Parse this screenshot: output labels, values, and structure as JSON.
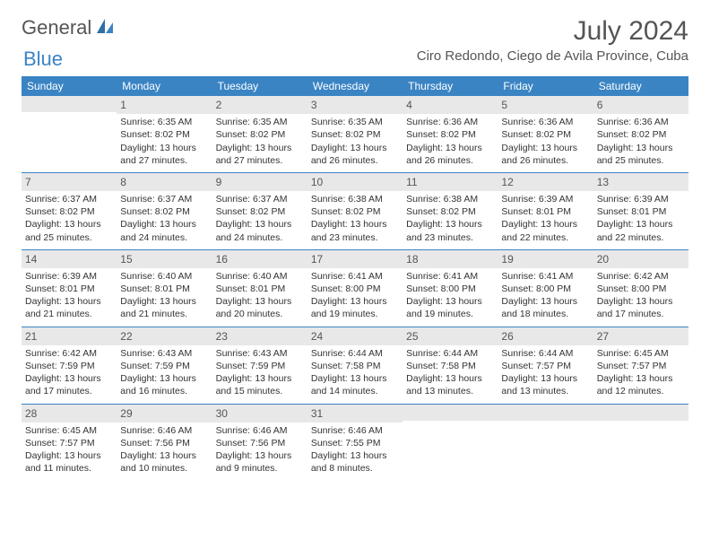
{
  "logo": {
    "text1": "General",
    "text2": "Blue"
  },
  "title": "July 2024",
  "location": "Ciro Redondo, Ciego de Avila Province, Cuba",
  "day_header_bg": "#3a84c4",
  "day_header_color": "#ffffff",
  "daynum_bg": "#e8e8e8",
  "border_color": "#3a84c4",
  "text_color": "#333333",
  "days": [
    "Sunday",
    "Monday",
    "Tuesday",
    "Wednesday",
    "Thursday",
    "Friday",
    "Saturday"
  ],
  "weeks": [
    [
      {
        "n": "",
        "sr": "",
        "ss": "",
        "dl": ""
      },
      {
        "n": "1",
        "sr": "Sunrise: 6:35 AM",
        "ss": "Sunset: 8:02 PM",
        "dl": "Daylight: 13 hours and 27 minutes."
      },
      {
        "n": "2",
        "sr": "Sunrise: 6:35 AM",
        "ss": "Sunset: 8:02 PM",
        "dl": "Daylight: 13 hours and 27 minutes."
      },
      {
        "n": "3",
        "sr": "Sunrise: 6:35 AM",
        "ss": "Sunset: 8:02 PM",
        "dl": "Daylight: 13 hours and 26 minutes."
      },
      {
        "n": "4",
        "sr": "Sunrise: 6:36 AM",
        "ss": "Sunset: 8:02 PM",
        "dl": "Daylight: 13 hours and 26 minutes."
      },
      {
        "n": "5",
        "sr": "Sunrise: 6:36 AM",
        "ss": "Sunset: 8:02 PM",
        "dl": "Daylight: 13 hours and 26 minutes."
      },
      {
        "n": "6",
        "sr": "Sunrise: 6:36 AM",
        "ss": "Sunset: 8:02 PM",
        "dl": "Daylight: 13 hours and 25 minutes."
      }
    ],
    [
      {
        "n": "7",
        "sr": "Sunrise: 6:37 AM",
        "ss": "Sunset: 8:02 PM",
        "dl": "Daylight: 13 hours and 25 minutes."
      },
      {
        "n": "8",
        "sr": "Sunrise: 6:37 AM",
        "ss": "Sunset: 8:02 PM",
        "dl": "Daylight: 13 hours and 24 minutes."
      },
      {
        "n": "9",
        "sr": "Sunrise: 6:37 AM",
        "ss": "Sunset: 8:02 PM",
        "dl": "Daylight: 13 hours and 24 minutes."
      },
      {
        "n": "10",
        "sr": "Sunrise: 6:38 AM",
        "ss": "Sunset: 8:02 PM",
        "dl": "Daylight: 13 hours and 23 minutes."
      },
      {
        "n": "11",
        "sr": "Sunrise: 6:38 AM",
        "ss": "Sunset: 8:02 PM",
        "dl": "Daylight: 13 hours and 23 minutes."
      },
      {
        "n": "12",
        "sr": "Sunrise: 6:39 AM",
        "ss": "Sunset: 8:01 PM",
        "dl": "Daylight: 13 hours and 22 minutes."
      },
      {
        "n": "13",
        "sr": "Sunrise: 6:39 AM",
        "ss": "Sunset: 8:01 PM",
        "dl": "Daylight: 13 hours and 22 minutes."
      }
    ],
    [
      {
        "n": "14",
        "sr": "Sunrise: 6:39 AM",
        "ss": "Sunset: 8:01 PM",
        "dl": "Daylight: 13 hours and 21 minutes."
      },
      {
        "n": "15",
        "sr": "Sunrise: 6:40 AM",
        "ss": "Sunset: 8:01 PM",
        "dl": "Daylight: 13 hours and 21 minutes."
      },
      {
        "n": "16",
        "sr": "Sunrise: 6:40 AM",
        "ss": "Sunset: 8:01 PM",
        "dl": "Daylight: 13 hours and 20 minutes."
      },
      {
        "n": "17",
        "sr": "Sunrise: 6:41 AM",
        "ss": "Sunset: 8:00 PM",
        "dl": "Daylight: 13 hours and 19 minutes."
      },
      {
        "n": "18",
        "sr": "Sunrise: 6:41 AM",
        "ss": "Sunset: 8:00 PM",
        "dl": "Daylight: 13 hours and 19 minutes."
      },
      {
        "n": "19",
        "sr": "Sunrise: 6:41 AM",
        "ss": "Sunset: 8:00 PM",
        "dl": "Daylight: 13 hours and 18 minutes."
      },
      {
        "n": "20",
        "sr": "Sunrise: 6:42 AM",
        "ss": "Sunset: 8:00 PM",
        "dl": "Daylight: 13 hours and 17 minutes."
      }
    ],
    [
      {
        "n": "21",
        "sr": "Sunrise: 6:42 AM",
        "ss": "Sunset: 7:59 PM",
        "dl": "Daylight: 13 hours and 17 minutes."
      },
      {
        "n": "22",
        "sr": "Sunrise: 6:43 AM",
        "ss": "Sunset: 7:59 PM",
        "dl": "Daylight: 13 hours and 16 minutes."
      },
      {
        "n": "23",
        "sr": "Sunrise: 6:43 AM",
        "ss": "Sunset: 7:59 PM",
        "dl": "Daylight: 13 hours and 15 minutes."
      },
      {
        "n": "24",
        "sr": "Sunrise: 6:44 AM",
        "ss": "Sunset: 7:58 PM",
        "dl": "Daylight: 13 hours and 14 minutes."
      },
      {
        "n": "25",
        "sr": "Sunrise: 6:44 AM",
        "ss": "Sunset: 7:58 PM",
        "dl": "Daylight: 13 hours and 13 minutes."
      },
      {
        "n": "26",
        "sr": "Sunrise: 6:44 AM",
        "ss": "Sunset: 7:57 PM",
        "dl": "Daylight: 13 hours and 13 minutes."
      },
      {
        "n": "27",
        "sr": "Sunrise: 6:45 AM",
        "ss": "Sunset: 7:57 PM",
        "dl": "Daylight: 13 hours and 12 minutes."
      }
    ],
    [
      {
        "n": "28",
        "sr": "Sunrise: 6:45 AM",
        "ss": "Sunset: 7:57 PM",
        "dl": "Daylight: 13 hours and 11 minutes."
      },
      {
        "n": "29",
        "sr": "Sunrise: 6:46 AM",
        "ss": "Sunset: 7:56 PM",
        "dl": "Daylight: 13 hours and 10 minutes."
      },
      {
        "n": "30",
        "sr": "Sunrise: 6:46 AM",
        "ss": "Sunset: 7:56 PM",
        "dl": "Daylight: 13 hours and 9 minutes."
      },
      {
        "n": "31",
        "sr": "Sunrise: 6:46 AM",
        "ss": "Sunset: 7:55 PM",
        "dl": "Daylight: 13 hours and 8 minutes."
      },
      {
        "n": "",
        "sr": "",
        "ss": "",
        "dl": ""
      },
      {
        "n": "",
        "sr": "",
        "ss": "",
        "dl": ""
      },
      {
        "n": "",
        "sr": "",
        "ss": "",
        "dl": ""
      }
    ]
  ]
}
